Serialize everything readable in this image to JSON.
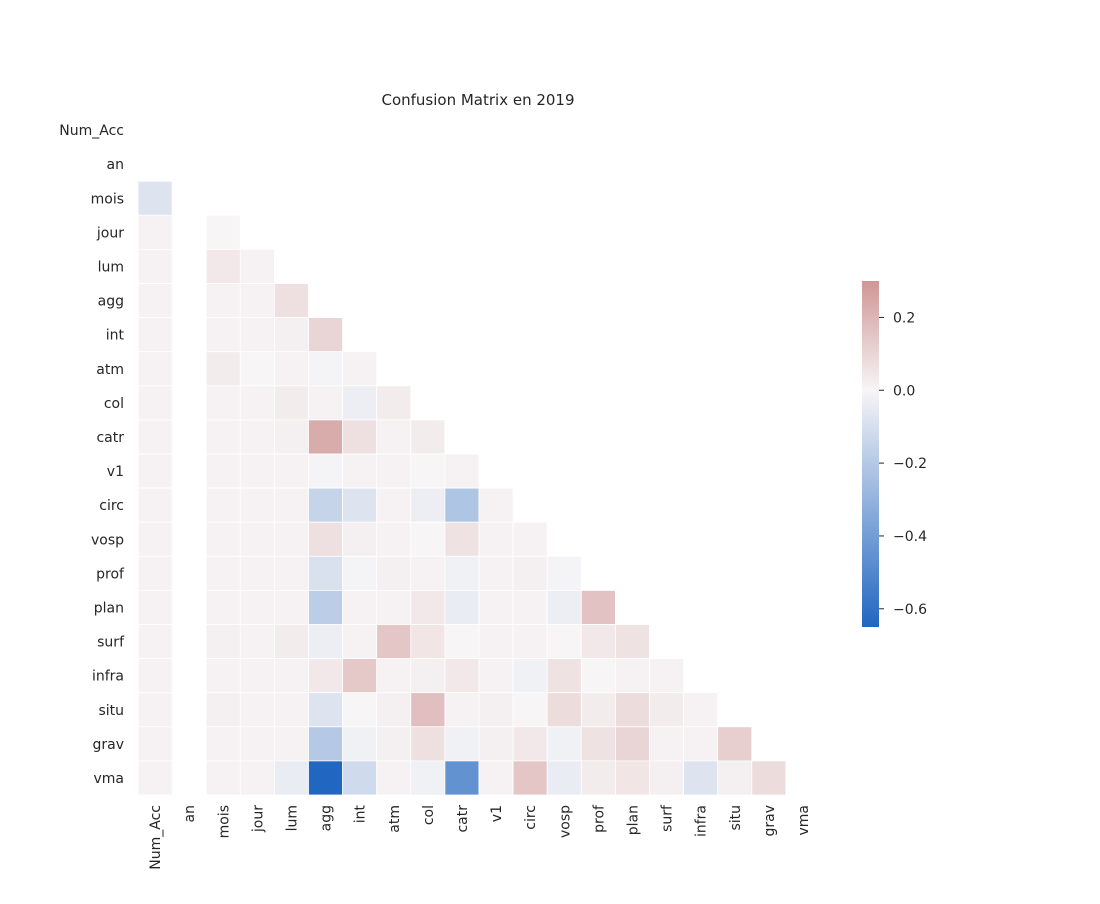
{
  "chart_data": {
    "type": "heatmap",
    "title": "Confusion Matrix en 2019",
    "labels": [
      "Num_Acc",
      "an",
      "mois",
      "jour",
      "lum",
      "agg",
      "int",
      "atm",
      "col",
      "catr",
      "v1",
      "circ",
      "vosp",
      "prof",
      "plan",
      "surf",
      "infra",
      "situ",
      "grav",
      "vma"
    ],
    "mask": "upper-triangle-and-diagonal",
    "values": [
      [],
      [
        null
      ],
      [
        -0.08,
        null
      ],
      [
        0.01,
        null,
        0.0
      ],
      [
        0.01,
        null,
        0.04,
        0.01
      ],
      [
        0.01,
        null,
        0.01,
        0.01,
        0.07
      ],
      [
        0.01,
        null,
        0.01,
        0.01,
        0.02,
        0.1
      ],
      [
        0.01,
        null,
        0.03,
        0.0,
        0.01,
        -0.01,
        0.01
      ],
      [
        0.01,
        null,
        0.01,
        0.01,
        0.03,
        0.01,
        -0.03,
        0.03
      ],
      [
        0.01,
        null,
        0.01,
        0.01,
        0.02,
        0.23,
        0.07,
        0.01,
        0.03
      ],
      [
        0.01,
        null,
        0.01,
        0.01,
        0.01,
        -0.01,
        0.01,
        0.01,
        0.0,
        0.01
      ],
      [
        0.01,
        null,
        0.01,
        0.01,
        0.01,
        -0.15,
        -0.08,
        0.01,
        -0.03,
        -0.22,
        0.01
      ],
      [
        0.01,
        null,
        0.01,
        0.01,
        0.01,
        0.07,
        0.02,
        0.01,
        0.0,
        0.06,
        0.01,
        0.01
      ],
      [
        0.01,
        null,
        0.01,
        0.01,
        0.01,
        -0.09,
        -0.01,
        0.02,
        0.01,
        -0.02,
        0.01,
        0.02,
        -0.01
      ],
      [
        0.01,
        null,
        0.01,
        0.01,
        0.01,
        -0.18,
        0.01,
        0.01,
        0.04,
        -0.04,
        0.01,
        0.01,
        -0.03,
        0.16
      ],
      [
        0.01,
        null,
        0.02,
        0.01,
        0.03,
        -0.03,
        0.01,
        0.15,
        0.05,
        0.0,
        0.01,
        0.01,
        0.0,
        0.04,
        0.06
      ],
      [
        0.01,
        null,
        0.01,
        0.01,
        0.01,
        0.04,
        0.14,
        0.01,
        0.02,
        0.04,
        0.01,
        -0.02,
        0.06,
        0.0,
        0.01,
        0.01
      ],
      [
        0.01,
        null,
        0.02,
        0.01,
        0.01,
        -0.08,
        0.0,
        0.02,
        0.17,
        0.01,
        0.02,
        0.0,
        0.08,
        0.03,
        0.08,
        0.03,
        0.01
      ],
      [
        0.01,
        null,
        0.01,
        0.01,
        0.01,
        -0.2,
        -0.02,
        0.02,
        0.07,
        -0.02,
        0.02,
        0.04,
        -0.02,
        0.06,
        0.1,
        0.01,
        0.01,
        0.12
      ],
      [
        0.01,
        null,
        0.01,
        0.01,
        -0.04,
        -0.65,
        -0.12,
        0.01,
        -0.02,
        -0.45,
        0.01,
        0.15,
        -0.04,
        0.03,
        0.05,
        0.02,
        -0.08,
        0.02,
        0.08
      ]
    ],
    "colorbar": {
      "min": -0.65,
      "max": 0.3,
      "ticks": [
        0.2,
        0.0,
        -0.2,
        -0.4,
        -0.6
      ],
      "tick_labels": [
        "0.2",
        "0.0",
        "−0.2",
        "−0.4",
        "−0.6"
      ],
      "colors": {
        "negative": "#2166c1",
        "center": "#f7f5f6",
        "positive": "#d09696"
      }
    },
    "grid": false
  }
}
